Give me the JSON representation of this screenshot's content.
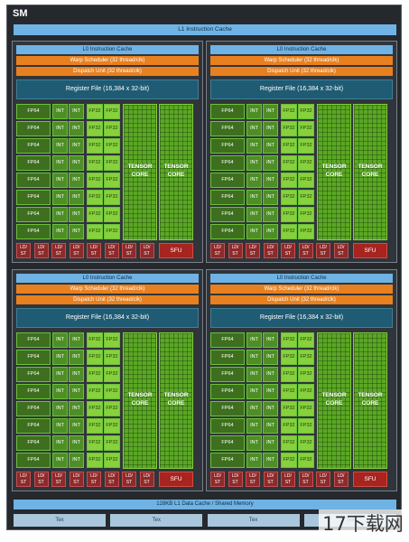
{
  "sm": {
    "title": "SM",
    "l1_instruction_cache": "L1 Instruction Cache",
    "l1_data_cache": "128KB L1 Data Cache / Shared Memory",
    "tex_label": "Tex",
    "tex_count": 4
  },
  "partition": {
    "l0_cache": "L0 Instruction Cache",
    "warp_scheduler": "Warp Scheduler (32 thread/clk)",
    "dispatch_unit": "Dispatch Unit (32 thread/clk)",
    "register_file": "Register File (16,384 x 32-bit)",
    "fp64": "FP64",
    "int": "INT",
    "fp32": "FP32",
    "tensor_core": "TENSOR\nCORE",
    "ldst": "LD/\nST",
    "sfu": "SFU",
    "core_rows": 8,
    "ldst_units": 8,
    "tensor_cores": 2,
    "count": 4
  },
  "watermark": "17下载网",
  "colors": {
    "background": "#25292e",
    "cache": "#6fb3e4",
    "scheduler": "#e8801f",
    "register_file": "#1f5b73",
    "core": "#3c8e1f",
    "fp32": "#86d13c",
    "ldst": "#8e2a2a",
    "sfu": "#a8241f"
  }
}
